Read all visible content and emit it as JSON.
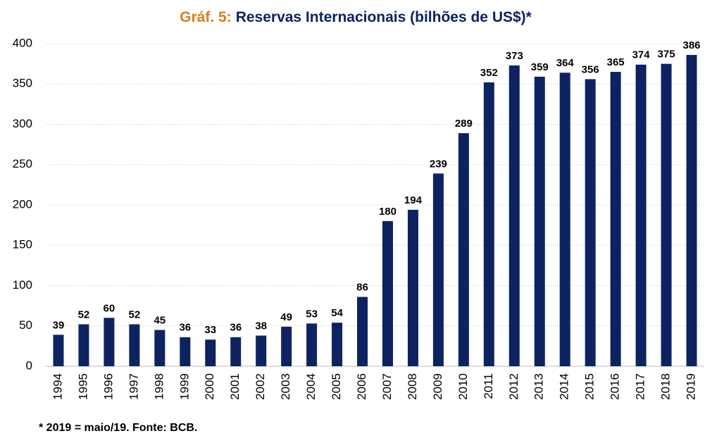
{
  "chart_data": {
    "type": "bar",
    "title_label": "Gráf. 5:",
    "title": "Reservas Internacionais (bilhões de US$)*",
    "note": "* 2019 = maio/19. Fonte: BCB.",
    "categories": [
      "1994",
      "1995",
      "1996",
      "1997",
      "1998",
      "1999",
      "2000",
      "2001",
      "2002",
      "2003",
      "2004",
      "2005",
      "2006",
      "2007",
      "2008",
      "2009",
      "2010",
      "2011",
      "2012",
      "2013",
      "2014",
      "2015",
      "2016",
      "2017",
      "2018",
      "2019"
    ],
    "values": [
      39,
      52,
      60,
      52,
      45,
      36,
      33,
      36,
      38,
      49,
      53,
      54,
      86,
      180,
      194,
      239,
      289,
      352,
      373,
      359,
      364,
      356,
      365,
      374,
      375,
      386
    ],
    "color": "#0d2361",
    "title_label_color": "#e07b1a",
    "ylim": [
      0,
      400
    ],
    "yticks": [
      0,
      50,
      100,
      150,
      200,
      250,
      300,
      350,
      400
    ],
    "grid": true
  }
}
